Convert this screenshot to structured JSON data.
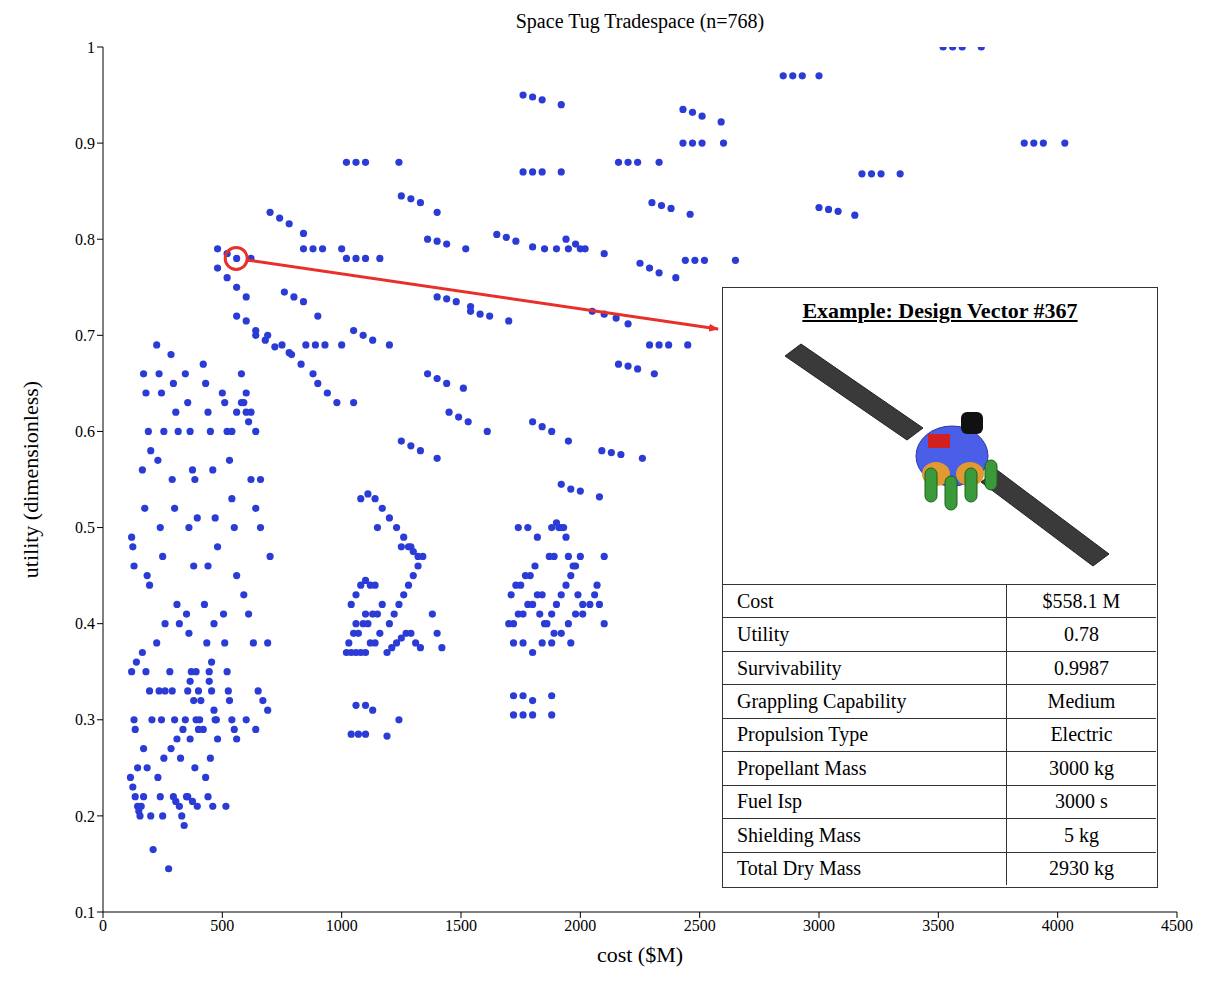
{
  "chart_data": {
    "type": "scatter",
    "title": "Space Tug Tradespace (n=768)",
    "x_label": "cost ($M)",
    "y_label": "utility (dimensionless)",
    "color": "#2a3bd6",
    "xlim": [
      0,
      4500
    ],
    "ylim": [
      0.1,
      1
    ],
    "xticks": [
      0,
      500,
      1000,
      1500,
      2000,
      2500,
      3000,
      3500,
      4000,
      4500
    ],
    "yticks": [
      0.1,
      0.2,
      0.3,
      0.4,
      0.5,
      0.6,
      0.7,
      0.8,
      0.9,
      1
    ],
    "grid": false,
    "x": [
      3520,
      3560,
      3600,
      3680,
      2850,
      2890,
      2930,
      3000,
      3860,
      3900,
      3940,
      4030,
      1760,
      1800,
      1840,
      1920,
      2430,
      2470,
      2510,
      2590,
      2430,
      2470,
      2510,
      2600,
      1760,
      1800,
      1840,
      1920,
      2160,
      2200,
      2240,
      2330,
      3180,
      3220,
      3260,
      3340,
      1020,
      1060,
      1100,
      1240,
      1250,
      1290,
      1330,
      1400,
      2300,
      2340,
      2380,
      2460,
      3000,
      3040,
      3080,
      3150,
      700,
      740,
      780,
      840,
      1650,
      1690,
      1730,
      1800,
      1360,
      1400,
      1440,
      1520,
      1940,
      1980,
      2020,
      2100,
      840,
      880,
      920,
      1000,
      480,
      520,
      560,
      620,
      1020,
      1060,
      1100,
      1160,
      2440,
      2480,
      2520,
      2650,
      2250,
      2290,
      2330,
      2400,
      1400,
      1440,
      1480,
      1540,
      1540,
      1580,
      1620,
      1700,
      760,
      800,
      840,
      900,
      2050,
      2100,
      2150,
      2200,
      2290,
      2330,
      2370,
      2450,
      1050,
      1090,
      1130,
      1200,
      850,
      890,
      930,
      1000,
      640,
      680,
      720,
      780,
      560,
      600,
      640,
      690,
      1360,
      1400,
      1440,
      1510,
      2160,
      2200,
      2240,
      2310,
      1450,
      1490,
      1530,
      1610,
      1800,
      1840,
      1880,
      1950,
      2090,
      2130,
      2170,
      2260,
      1250,
      1290,
      1330,
      1400,
      1920,
      1960,
      2000,
      2080,
      480,
      520,
      560,
      600,
      1850,
      1900,
      1950,
      2000,
      750,
      790,
      830,
      880,
      900,
      940,
      980,
      1050,
      120,
      125,
      130,
      140,
      120,
      130,
      135,
      145,
      115,
      125,
      135,
      145,
      150,
      155,
      160,
      170,
      170,
      180,
      190,
      200,
      165,
      175,
      185,
      195,
      165,
      180,
      195,
      205,
      170,
      185,
      200,
      210,
      225,
      235,
      245,
      255,
      230,
      240,
      250,
      260,
      225,
      235,
      245,
      255,
      230,
      240,
      250,
      260,
      285,
      295,
      305,
      315,
      290,
      300,
      310,
      320,
      280,
      290,
      300,
      310,
      285,
      295,
      305,
      275,
      320,
      330,
      340,
      350,
      325,
      335,
      345,
      355,
      345,
      355,
      365,
      375,
      385,
      395,
      360,
      380,
      350,
      360,
      370,
      380,
      390,
      400,
      365,
      385,
      355,
      375,
      395,
      405,
      410,
      365,
      390,
      400,
      420,
      430,
      440,
      450,
      460,
      470,
      480,
      440,
      425,
      435,
      445,
      455,
      465,
      475,
      420,
      450,
      430,
      440,
      460,
      470,
      480,
      445,
      455,
      465,
      500,
      510,
      520,
      530,
      540,
      550,
      560,
      505,
      510,
      520,
      530,
      540,
      550,
      560,
      515,
      525,
      580,
      590,
      600,
      610,
      620,
      640,
      660,
      700,
      590,
      610,
      630,
      650,
      670,
      690,
      600,
      640,
      540,
      560,
      580,
      600,
      620,
      640,
      660,
      690,
      1020,
      1040,
      1060,
      1080,
      1100,
      1120,
      1140,
      1160,
      1030,
      1050,
      1070,
      1090,
      1110,
      1130,
      1150,
      1170,
      1040,
      1060,
      1080,
      1100,
      1120,
      1140,
      1060,
      1100,
      1040,
      1070,
      1100,
      1190,
      1060,
      1100,
      1130,
      1150,
      1080,
      1110,
      1140,
      1170,
      1200,
      1230,
      1260,
      1290,
      1190,
      1210,
      1230,
      1250,
      1270,
      1290,
      1310,
      1330,
      1200,
      1220,
      1240,
      1260,
      1280,
      1300,
      1320,
      1340,
      1250,
      1280,
      1300,
      1320,
      1380,
      1400,
      1420,
      1240,
      1700,
      1720,
      1740,
      1760,
      1780,
      1800,
      1820,
      1840,
      1710,
      1730,
      1750,
      1770,
      1790,
      1810,
      1830,
      1850,
      1720,
      1760,
      1800,
      1840,
      1880,
      1740,
      1780,
      1820,
      1720,
      1760,
      1800,
      1880,
      1720,
      1760,
      1800,
      1880,
      1860,
      1880,
      1900,
      1920,
      1940,
      1960,
      1980,
      2000,
      1870,
      1890,
      1910,
      1930,
      1950,
      1970,
      1990,
      2010,
      1880,
      1900,
      1920,
      1940,
      2060,
      2080,
      2100,
      1960,
      1890,
      1920,
      1950,
      1980,
      2010,
      2040,
      2070,
      2100
    ],
    "values": [
      1,
      1,
      1,
      1,
      0.97,
      0.97,
      0.97,
      0.97,
      0.9,
      0.9,
      0.9,
      0.9,
      0.95,
      0.948,
      0.945,
      0.94,
      0.935,
      0.932,
      0.928,
      0.922,
      0.9,
      0.9,
      0.9,
      0.9,
      0.87,
      0.87,
      0.87,
      0.87,
      0.88,
      0.88,
      0.88,
      0.88,
      0.868,
      0.868,
      0.868,
      0.868,
      0.88,
      0.88,
      0.88,
      0.88,
      0.845,
      0.842,
      0.838,
      0.828,
      0.838,
      0.835,
      0.832,
      0.826,
      0.833,
      0.831,
      0.829,
      0.825,
      0.828,
      0.822,
      0.816,
      0.806,
      0.805,
      0.802,
      0.798,
      0.792,
      0.8,
      0.798,
      0.795,
      0.79,
      0.8,
      0.795,
      0.79,
      0.785,
      0.79,
      0.79,
      0.79,
      0.79,
      0.79,
      0.785,
      0.78,
      0.78,
      0.78,
      0.78,
      0.78,
      0.78,
      0.778,
      0.778,
      0.778,
      0.778,
      0.775,
      0.77,
      0.765,
      0.76,
      0.74,
      0.738,
      0.735,
      0.73,
      0.725,
      0.722,
      0.72,
      0.715,
      0.745,
      0.74,
      0.735,
      0.72,
      0.725,
      0.722,
      0.718,
      0.712,
      0.69,
      0.69,
      0.69,
      0.69,
      0.705,
      0.7,
      0.695,
      0.69,
      0.69,
      0.69,
      0.69,
      0.69,
      0.7,
      0.695,
      0.688,
      0.682,
      0.72,
      0.715,
      0.705,
      0.7,
      0.66,
      0.655,
      0.65,
      0.645,
      0.67,
      0.668,
      0.665,
      0.66,
      0.62,
      0.615,
      0.61,
      0.6,
      0.61,
      0.605,
      0.6,
      0.59,
      0.58,
      0.578,
      0.576,
      0.572,
      0.59,
      0.585,
      0.58,
      0.572,
      0.545,
      0.54,
      0.538,
      0.532,
      0.77,
      0.76,
      0.75,
      0.74,
      0.79,
      0.79,
      0.79,
      0.79,
      0.69,
      0.68,
      0.67,
      0.66,
      0.65,
      0.64,
      0.63,
      0.63,
      0.49,
      0.48,
      0.46,
      0.36,
      0.35,
      0.3,
      0.29,
      0.25,
      0.24,
      0.23,
      0.22,
      0.21,
      0.205,
      0.2,
      0.21,
      0.22,
      0.66,
      0.64,
      0.6,
      0.58,
      0.56,
      0.52,
      0.45,
      0.44,
      0.37,
      0.35,
      0.33,
      0.3,
      0.27,
      0.25,
      0.2,
      0.165,
      0.69,
      0.66,
      0.64,
      0.6,
      0.57,
      0.5,
      0.47,
      0.4,
      0.38,
      0.33,
      0.3,
      0.26,
      0.24,
      0.22,
      0.2,
      0.33,
      0.68,
      0.65,
      0.62,
      0.6,
      0.55,
      0.52,
      0.42,
      0.4,
      0.35,
      0.33,
      0.3,
      0.28,
      0.27,
      0.22,
      0.215,
      0.145,
      0.21,
      0.2,
      0.19,
      0.22,
      0.26,
      0.29,
      0.3,
      0.33,
      0.66,
      0.63,
      0.6,
      0.56,
      0.55,
      0.51,
      0.5,
      0.46,
      0.41,
      0.39,
      0.35,
      0.32,
      0.3,
      0.29,
      0.28,
      0.25,
      0.22,
      0.215,
      0.21,
      0.3,
      0.32,
      0.34,
      0.35,
      0.33,
      0.67,
      0.65,
      0.62,
      0.6,
      0.56,
      0.51,
      0.48,
      0.46,
      0.42,
      0.38,
      0.35,
      0.33,
      0.31,
      0.3,
      0.29,
      0.26,
      0.24,
      0.22,
      0.21,
      0.3,
      0.28,
      0.34,
      0.36,
      0.4,
      0.64,
      0.63,
      0.6,
      0.57,
      0.53,
      0.5,
      0.45,
      0.41,
      0.38,
      0.35,
      0.32,
      0.3,
      0.29,
      0.28,
      0.21,
      0.33,
      0.66,
      0.63,
      0.62,
      0.61,
      0.55,
      0.52,
      0.5,
      0.47,
      0.43,
      0.41,
      0.38,
      0.33,
      0.32,
      0.31,
      0.3,
      0.29,
      0.6,
      0.62,
      0.63,
      0.64,
      0.62,
      0.6,
      0.55,
      0.38,
      0.37,
      0.37,
      0.37,
      0.37,
      0.37,
      0.38,
      0.38,
      0.39,
      0.38,
      0.39,
      0.39,
      0.4,
      0.4,
      0.41,
      0.41,
      0.42,
      0.42,
      0.43,
      0.44,
      0.445,
      0.44,
      0.44,
      0.4,
      0.41,
      0.285,
      0.285,
      0.285,
      0.283,
      0.315,
      0.315,
      0.31,
      0.5,
      0.53,
      0.535,
      0.53,
      0.52,
      0.51,
      0.5,
      0.49,
      0.48,
      0.37,
      0.375,
      0.38,
      0.385,
      0.39,
      0.39,
      0.38,
      0.375,
      0.4,
      0.41,
      0.42,
      0.43,
      0.44,
      0.45,
      0.46,
      0.47,
      0.48,
      0.48,
      0.475,
      0.47,
      0.41,
      0.39,
      0.375,
      0.3,
      0.4,
      0.4,
      0.41,
      0.41,
      0.42,
      0.42,
      0.43,
      0.43,
      0.43,
      0.44,
      0.44,
      0.45,
      0.45,
      0.46,
      0.41,
      0.4,
      0.38,
      0.38,
      0.37,
      0.38,
      0.38,
      0.5,
      0.5,
      0.49,
      0.325,
      0.325,
      0.32,
      0.325,
      0.305,
      0.305,
      0.305,
      0.305,
      0.4,
      0.41,
      0.42,
      0.43,
      0.44,
      0.45,
      0.46,
      0.47,
      0.47,
      0.47,
      0.5,
      0.5,
      0.47,
      0.46,
      0.43,
      0.42,
      0.5,
      0.505,
      0.5,
      0.49,
      0.43,
      0.42,
      0.4,
      0.38,
      0.39,
      0.39,
      0.4,
      0.41,
      0.41,
      0.42,
      0.44,
      0.47
    ],
    "annotation": {
      "x": 558.1,
      "y": 0.78,
      "color": "#e8302a",
      "title": "Example: Design Vector #367",
      "rows": [
        [
          "Cost",
          "$558.1 M"
        ],
        [
          "Utility",
          "0.78"
        ],
        [
          "Survivability",
          "0.9987"
        ],
        [
          "Grappling Capability",
          "Medium"
        ],
        [
          "Propulsion Type",
          "Electric"
        ],
        [
          "Propellant Mass",
          "3000 kg"
        ],
        [
          "Fuel Isp",
          "3000 s"
        ],
        [
          "Shielding Mass",
          "5 kg"
        ],
        [
          "Total Dry Mass",
          "2930 kg"
        ]
      ]
    }
  }
}
